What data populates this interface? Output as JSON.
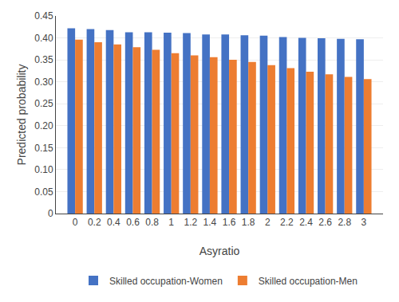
{
  "chart_data": {
    "type": "bar",
    "xlabel": "Asyratio",
    "ylabel": "Predicted probability",
    "x": [
      0,
      0.2,
      0.4,
      0.6,
      0.8,
      1,
      1.2,
      1.4,
      1.6,
      1.8,
      2,
      2.2,
      2.4,
      2.6,
      2.8,
      3
    ],
    "series": [
      {
        "name": "Skilled occupation-Women",
        "color": "#4472C4",
        "values": [
          0.422,
          0.42,
          0.418,
          0.413,
          0.413,
          0.412,
          0.411,
          0.408,
          0.408,
          0.406,
          0.405,
          0.402,
          0.4,
          0.399,
          0.398,
          0.397
        ]
      },
      {
        "name": "Skilled occupation-Men",
        "color": "#ED7D31",
        "values": [
          0.396,
          0.39,
          0.385,
          0.379,
          0.373,
          0.365,
          0.36,
          0.356,
          0.35,
          0.345,
          0.338,
          0.331,
          0.323,
          0.317,
          0.311,
          0.306
        ]
      }
    ],
    "xlim": [
      -0.2,
      3.2
    ],
    "xticks": [
      0,
      0.2,
      0.4,
      0.6,
      0.8,
      1,
      1.2,
      1.4,
      1.6,
      1.8,
      2,
      2.2,
      2.4,
      2.6,
      2.8,
      3
    ],
    "ylim": [
      0,
      0.45
    ],
    "yticks": [
      0,
      0.05,
      {
        "value": 0.1,
        "label": "0.10"
      },
      0.15,
      {
        "value": 0.2,
        "label": "0.20"
      },
      0.25,
      {
        "value": 0.3,
        "label": "0.30"
      },
      0.35,
      {
        "value": 0.4,
        "label": "0.40"
      },
      0.45
    ],
    "grid": "y",
    "legend": "bottom"
  }
}
